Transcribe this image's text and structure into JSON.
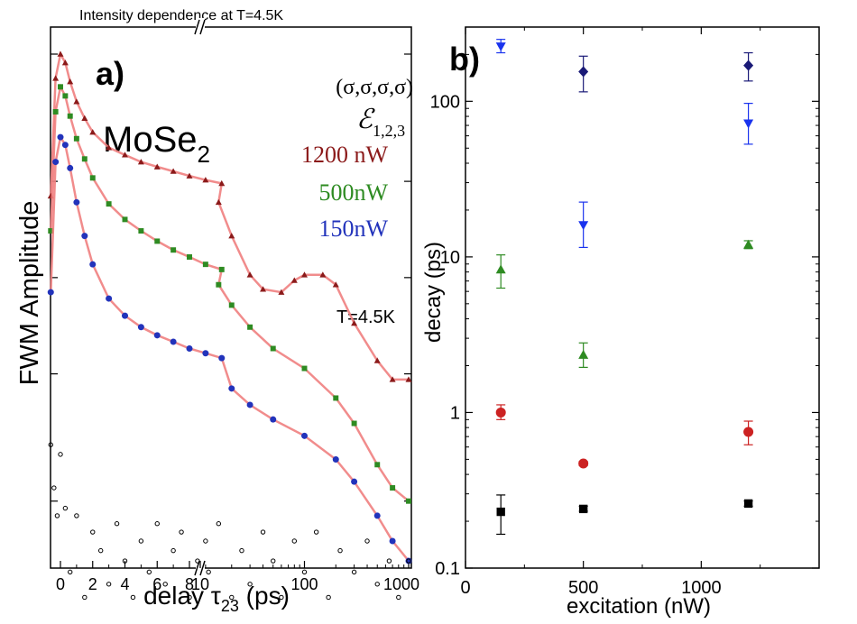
{
  "chart_data": [
    {
      "panel": "a",
      "type": "scatter",
      "panel_label": "a)",
      "title": "Intensity dependence at T=4.5K",
      "xlabel": "delay τ₂₃ (ps)",
      "xlabel_main": "delay τ",
      "xlabel_sub": "23",
      "xlabel_unit": " (ps)",
      "ylabel": "FWM Amplitude",
      "x_axis": "broken: linear 0–10 ps, then logarithmic 10–1000 ps",
      "y_scale": "log, no tick labels",
      "x_ticks_linear": [
        "0",
        "2",
        "4",
        "6",
        "8"
      ],
      "x_ticks_log": [
        "10",
        "100",
        "1000"
      ],
      "annotations": {
        "sample": "MoSe",
        "sample_sub": "2",
        "polarization": "(σ,σ,σ,σ)",
        "pulses": "ℰ",
        "pulses_sub": "1,2,3",
        "temperature": "T=4.5K"
      },
      "series": [
        {
          "name": "1200 nW",
          "color": "#8b1a1a",
          "marker": "triangle",
          "points": [
            [
              -0.6,
              1.8
            ],
            [
              -0.3,
              4.2
            ],
            [
              0,
              5.0
            ],
            [
              0.3,
              4.7
            ],
            [
              0.6,
              4.1
            ],
            [
              1,
              3.55
            ],
            [
              1.5,
              3.15
            ],
            [
              2,
              2.85
            ],
            [
              3,
              2.55
            ],
            [
              4,
              2.42
            ],
            [
              5,
              2.3
            ],
            [
              6,
              2.22
            ],
            [
              7,
              2.15
            ],
            [
              8,
              2.08
            ],
            [
              9,
              2.02
            ],
            [
              10,
              1.97
            ],
            [
              15,
              1.72
            ],
            [
              20,
              1.35
            ],
            [
              30,
              1.02
            ],
            [
              40,
              0.92
            ],
            [
              60,
              0.9
            ],
            [
              80,
              0.98
            ],
            [
              100,
              1.02
            ],
            [
              150,
              1.02
            ],
            [
              200,
              0.95
            ],
            [
              300,
              0.72
            ],
            [
              500,
              0.55
            ],
            [
              700,
              0.48
            ],
            [
              1000,
              0.48
            ]
          ]
        },
        {
          "name": "500nW",
          "color": "#2e8b22",
          "marker": "square",
          "points": [
            [
              -0.6,
              1.4
            ],
            [
              -0.3,
              3.3
            ],
            [
              0,
              3.95
            ],
            [
              0.3,
              3.7
            ],
            [
              0.6,
              3.2
            ],
            [
              1,
              2.72
            ],
            [
              1.5,
              2.35
            ],
            [
              2,
              2.05
            ],
            [
              3,
              1.7
            ],
            [
              4,
              1.52
            ],
            [
              5,
              1.4
            ],
            [
              6,
              1.3
            ],
            [
              7,
              1.22
            ],
            [
              8,
              1.16
            ],
            [
              9,
              1.1
            ],
            [
              10,
              1.06
            ],
            [
              15,
              0.95
            ],
            [
              20,
              0.82
            ],
            [
              30,
              0.7
            ],
            [
              50,
              0.6
            ],
            [
              100,
              0.52
            ],
            [
              200,
              0.42
            ],
            [
              300,
              0.35
            ],
            [
              500,
              0.26
            ],
            [
              700,
              0.22
            ],
            [
              1000,
              0.2
            ]
          ]
        },
        {
          "name": "150nW",
          "color": "#2233bb",
          "marker": "circle",
          "points": [
            [
              -0.6,
              0.9
            ],
            [
              -0.3,
              2.3
            ],
            [
              0,
              2.75
            ],
            [
              0.3,
              2.6
            ],
            [
              0.6,
              2.2
            ],
            [
              1,
              1.72
            ],
            [
              1.5,
              1.35
            ],
            [
              2,
              1.1
            ],
            [
              3,
              0.86
            ],
            [
              4,
              0.76
            ],
            [
              5,
              0.7
            ],
            [
              6,
              0.66
            ],
            [
              7,
              0.63
            ],
            [
              8,
              0.6
            ],
            [
              9,
              0.58
            ],
            [
              10,
              0.56
            ],
            [
              20,
              0.45
            ],
            [
              30,
              0.4
            ],
            [
              50,
              0.36
            ],
            [
              100,
              0.32
            ],
            [
              200,
              0.27
            ],
            [
              300,
              0.23
            ],
            [
              500,
              0.18
            ],
            [
              700,
              0.15
            ],
            [
              1000,
              0.13
            ]
          ]
        },
        {
          "name": "",
          "color": "#000000",
          "marker": "open-circle",
          "points": [
            [
              -0.6,
              0.3
            ],
            [
              -0.4,
              0.22
            ],
            [
              -0.2,
              0.18
            ],
            [
              0,
              0.28
            ],
            [
              0.3,
              0.19
            ],
            [
              0.6,
              0.12
            ],
            [
              1,
              0.18
            ],
            [
              1.5,
              0.1
            ],
            [
              2,
              0.16
            ],
            [
              2.5,
              0.14
            ],
            [
              3,
              0.11
            ],
            [
              3.5,
              0.17
            ],
            [
              4,
              0.13
            ],
            [
              4.5,
              0.1
            ],
            [
              5,
              0.15
            ],
            [
              5.5,
              0.12
            ],
            [
              6,
              0.17
            ],
            [
              6.5,
              0.11
            ],
            [
              7,
              0.14
            ],
            [
              7.5,
              0.16
            ],
            [
              8,
              0.1
            ],
            [
              8.5,
              0.13
            ],
            [
              9,
              0.15
            ],
            [
              12,
              0.12
            ],
            [
              15,
              0.17
            ],
            [
              20,
              0.1
            ],
            [
              25,
              0.14
            ],
            [
              30,
              0.11
            ],
            [
              40,
              0.16
            ],
            [
              50,
              0.13
            ],
            [
              60,
              0.1
            ],
            [
              80,
              0.15
            ],
            [
              100,
              0.12
            ],
            [
              130,
              0.16
            ],
            [
              170,
              0.1
            ],
            [
              220,
              0.14
            ],
            [
              300,
              0.12
            ],
            [
              400,
              0.15
            ],
            [
              500,
              0.11
            ],
            [
              650,
              0.13
            ],
            [
              800,
              0.1
            ],
            [
              1000,
              0.13
            ]
          ]
        }
      ]
    },
    {
      "panel": "b",
      "type": "scatter",
      "panel_label": "b)",
      "xlabel": "excitation (nW)",
      "ylabel": "decay (ps)",
      "xlim": [
        0,
        1500
      ],
      "ylim": [
        0.1,
        300
      ],
      "y_scale": "log",
      "x_ticks": [
        "0",
        "500",
        "1000"
      ],
      "y_ticks": [
        "0.1",
        "1",
        "10",
        "100"
      ],
      "series": [
        {
          "name": "",
          "color": "#000000",
          "marker": "square",
          "points": [
            {
              "x": 150,
              "y": 0.23,
              "lo": 0.165,
              "hi": 0.295
            },
            {
              "x": 500,
              "y": 0.24,
              "lo": 0.232,
              "hi": 0.25
            },
            {
              "x": 1200,
              "y": 0.26,
              "lo": 0.25,
              "hi": 0.27
            }
          ]
        },
        {
          "name": "",
          "color": "#cc2222",
          "marker": "circle",
          "points": [
            {
              "x": 150,
              "y": 1.0,
              "lo": 0.9,
              "hi": 1.12
            },
            {
              "x": 500,
              "y": 0.47,
              "lo": 0.455,
              "hi": 0.485
            },
            {
              "x": 1200,
              "y": 0.75,
              "lo": 0.62,
              "hi": 0.88
            }
          ]
        },
        {
          "name": "",
          "color": "#2e8b22",
          "marker": "triangle",
          "points": [
            {
              "x": 150,
              "y": 8.3,
              "lo": 6.3,
              "hi": 10.3
            },
            {
              "x": 500,
              "y": 2.35,
              "lo": 1.95,
              "hi": 2.8
            },
            {
              "x": 1200,
              "y": 12,
              "lo": 11.3,
              "hi": 12.7
            }
          ]
        },
        {
          "name": "",
          "color": "#1a33ee",
          "marker": "triangle-down",
          "points": [
            {
              "x": 150,
              "y": 225,
              "lo": 205,
              "hi": 250
            },
            {
              "x": 500,
              "y": 16,
              "lo": 11.5,
              "hi": 22.5
            },
            {
              "x": 1200,
              "y": 72,
              "lo": 53,
              "hi": 97
            }
          ]
        },
        {
          "name": "",
          "color": "#1a1a77",
          "marker": "diamond",
          "points": [
            {
              "x": 500,
              "y": 155,
              "lo": 115,
              "hi": 195
            },
            {
              "x": 1200,
              "y": 170,
              "lo": 135,
              "hi": 205
            }
          ]
        }
      ]
    }
  ]
}
